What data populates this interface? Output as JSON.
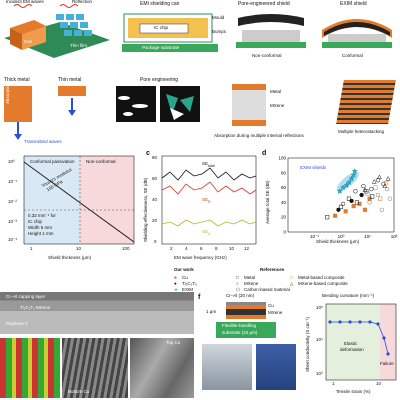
{
  "row1": {
    "incident": "Incident EM waves",
    "reflection": "Reflection",
    "can": "Can",
    "thin_film": "Thin film",
    "emi_title": "EMI shielding can",
    "mould": "Mould",
    "bumps": "Bumps",
    "ic_chip": "IC chip",
    "package_substrate": "Package substrate",
    "pore_title": "Pore-engineered shield",
    "non_conformal": "Non-conformal",
    "exim_title": "EXIM shield",
    "conformal": "Conformal"
  },
  "row2": {
    "thick_metal": "Thick metal",
    "thin_metal": "Thin metal",
    "pore_engineering": "Pore engineering",
    "absorption": "Absorption",
    "transmitted": "Transmitted waves",
    "metal": "Metal",
    "mxene": "MXene",
    "absorption_multiple": "Absorption during multiple internal reflections",
    "multiple_hetero": "Multiple heterostacking"
  },
  "panel_b": {
    "conformal_passivation": "Conformal passivation",
    "non_conformal": "Non-conformal",
    "youngs": "Young's modulus",
    "youngs_val": "100 GPa",
    "ann1": "0.32 mm⁻¹ for",
    "ann2": "IC chip",
    "ann3": "Width 5 mm",
    "ann4": "Height 1 mm",
    "ticks_y": [
      "10⁰",
      "10⁻¹",
      "10⁻²",
      "10⁻³",
      "10⁻⁴"
    ],
    "ticks_x": [
      "1",
      "10",
      "100"
    ],
    "xlabel": "Shield thickness (μm)"
  },
  "panel_c": {
    "letter": "c",
    "ylabel": "Shielding effectiveness, SE (dB)",
    "xlabel": "EM wave frequency (GHz)",
    "ticks_y": [
      "80",
      "60",
      "40",
      "20",
      "0"
    ],
    "ticks_x": [
      "2",
      "4",
      "6",
      "8",
      "10",
      "12"
    ],
    "se_total": "SE",
    "se_total_sub": "total",
    "se_r": "SE",
    "se_r_sub": "R",
    "se_a": "SE",
    "se_a_sub": "A"
  },
  "chart_data": {
    "type": "scatter",
    "title": "",
    "xlabel": "Shield thickness (μm)",
    "ylabel": "Average total SE (dB)",
    "xlim": [
      0.01,
      100
    ],
    "ylim": [
      0,
      100
    ],
    "log_x": true,
    "x_ticks": [
      "10⁻¹",
      "10⁰",
      "10¹",
      "10²"
    ],
    "y_ticks": [
      "100",
      "80",
      "60",
      "40",
      "20",
      "0"
    ],
    "annotation": "EXIM shields",
    "series": [
      {
        "name": "EXIM",
        "symbol": "star",
        "x": [
          0.9,
          1.2,
          1.6,
          2.0,
          2.5,
          3.0,
          3.3
        ],
        "y": [
          55,
          60,
          63,
          67,
          72,
          77,
          82
        ]
      },
      {
        "name": "Cu",
        "symbol": "square-filled",
        "x": [
          0.6,
          1.5,
          3,
          5,
          8,
          12
        ],
        "y": [
          22,
          28,
          35,
          38,
          30,
          45
        ]
      },
      {
        "name": "Ti₃C₂Tₓ",
        "symbol": "circle-filled",
        "x": [
          0.8,
          2.5,
          6
        ],
        "y": [
          30,
          42,
          50
        ]
      },
      {
        "name": "Metal",
        "symbol": "square-open",
        "x": [
          0.3,
          1.0,
          2.0,
          4.0,
          9.0,
          15
        ],
        "y": [
          20,
          34,
          45,
          40,
          55,
          48
        ]
      },
      {
        "name": "MXene",
        "symbol": "circle-open",
        "x": [
          1.2,
          3.5,
          7,
          14,
          25,
          40
        ],
        "y": [
          38,
          55,
          62,
          58,
          70,
          65
        ]
      },
      {
        "name": "Metal-based composite",
        "symbol": "square-orange-open",
        "x": [
          10,
          20,
          30,
          50
        ],
        "y": [
          52,
          60,
          45,
          66
        ]
      },
      {
        "name": "MXene-based composite",
        "symbol": "triangle-open",
        "x": [
          8,
          18,
          28,
          45,
          60
        ],
        "y": [
          57,
          68,
          74,
          62,
          72
        ]
      },
      {
        "name": "Carbon-based material",
        "symbol": "hex-open",
        "x": [
          12,
          25,
          35,
          55,
          70
        ],
        "y": [
          40,
          50,
          30,
          58,
          45
        ]
      }
    ]
  },
  "panel_d_meta": {
    "letter": "d"
  },
  "legend": {
    "our_work": "Our work",
    "references": "References",
    "cu": "Cu",
    "ti3c2tx": "Ti₃C₂Tₓ",
    "exim": "EXIM",
    "metal": "Metal",
    "mxene": "MXene",
    "carbon": "Carbon-based material",
    "metal_comp": "Metal-based composite",
    "mxene_comp": "MXene-based composite"
  },
  "row4": {
    "capping": "Cr–Al capping layer",
    "ti3c2tx": "Ti₃C₂Tₓ MXene",
    "parylene": "Parylene C",
    "top_cu": "Top Cu",
    "bottom_cu": "Bottom Cu",
    "f_letter": "f",
    "cr_al": "Cr–Al (20 nm)",
    "cu": "Cu",
    "mxene": "MXene",
    "one_um": "1 μm",
    "flexible": "Flexible-handling",
    "substrate": "substrate (24 μm)",
    "bending_title": "Bending curvature (mm⁻¹)",
    "sheet_cond": "Sheet conductivity (S cm⁻¹)",
    "tensile": "Tensile strain (%)",
    "elastic": "Elastic",
    "deformation": "deformation",
    "failure": "Failure",
    "bend_ticks_y": [
      "10⁵",
      "10⁴",
      "10³"
    ],
    "bend_ticks_x": [
      "1",
      "10"
    ]
  }
}
